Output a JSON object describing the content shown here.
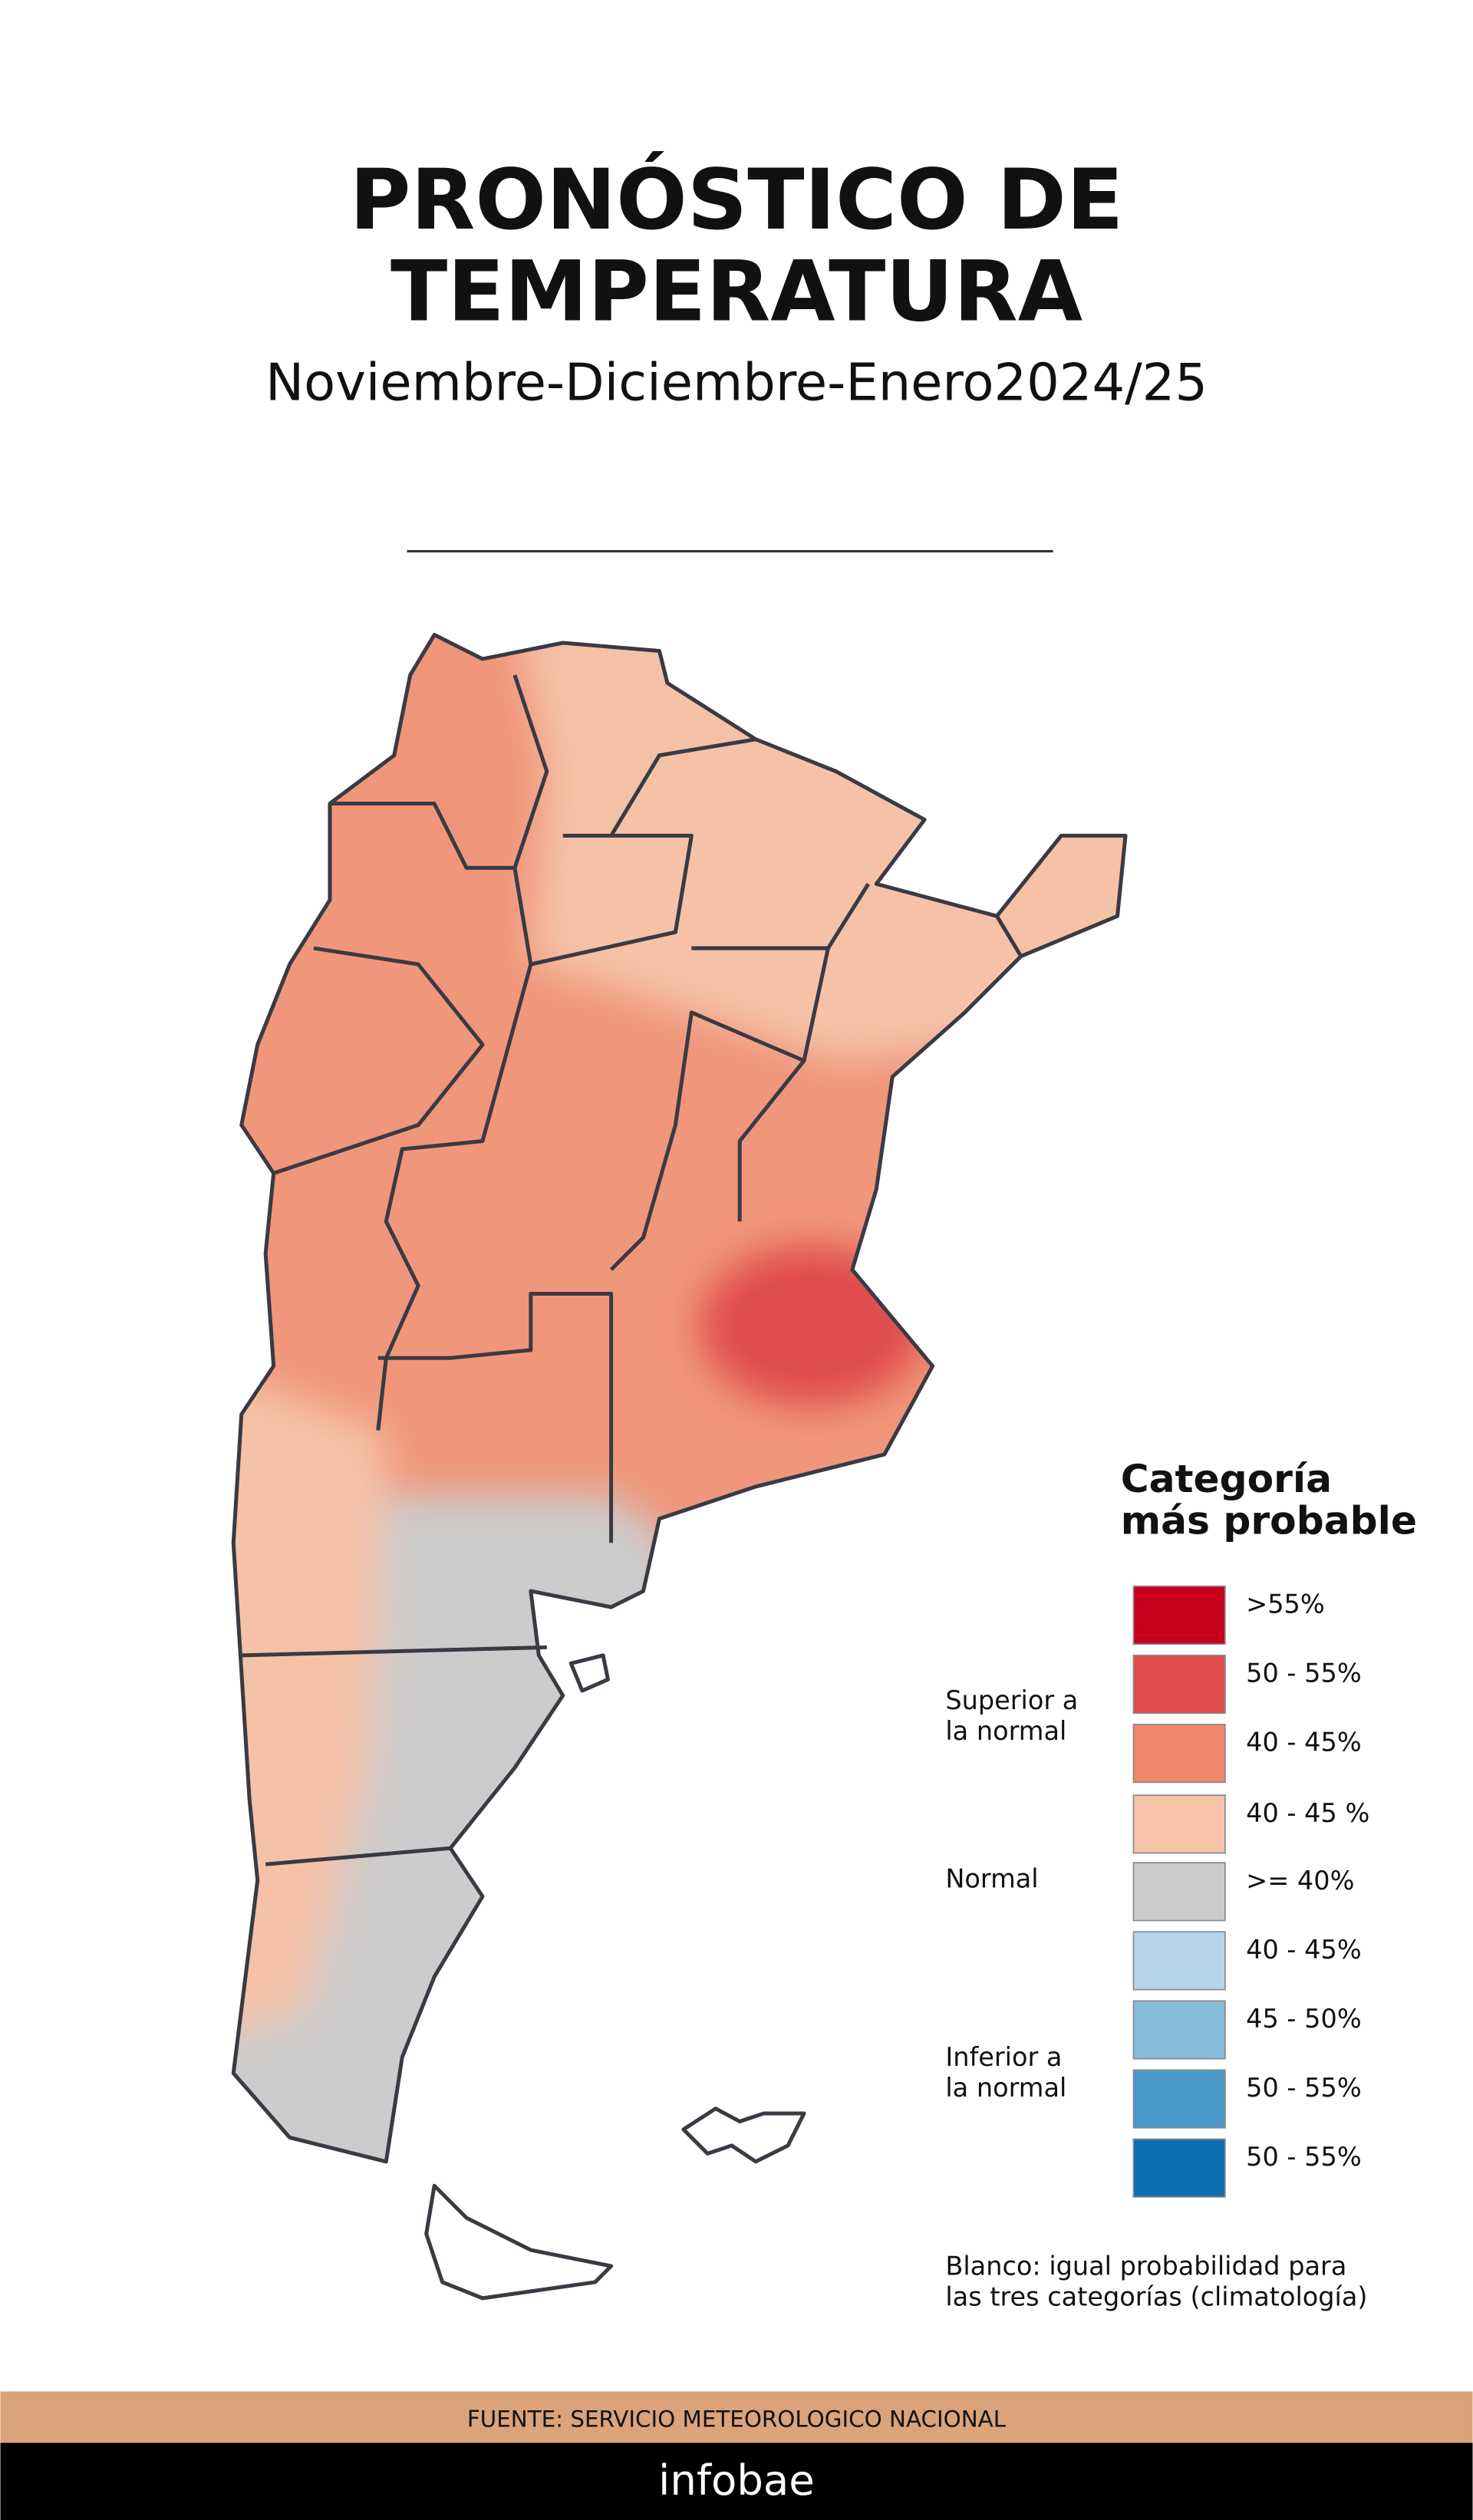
{
  "header": {
    "title": [
      "PRONÓSTICO DE",
      "TEMPERATURA"
    ],
    "subtitle": "Noviembre-Diciembre-Enero2024/25"
  },
  "legend": {
    "title": [
      "Categoría",
      "más probable"
    ],
    "items": [
      {
        "label": ">55%",
        "color": "#c8001e"
      },
      {
        "label": "50 - 55%",
        "color": "#e04b4d"
      },
      {
        "label": "40 - 45%",
        "color": "#f0876a"
      },
      {
        "label": "40 - 45 %",
        "color": "#f6c2aa"
      },
      {
        "label": ">= 40%",
        "color": "#cccccc"
      },
      {
        "label": "40 - 45%",
        "color": "#b5d6ea"
      },
      {
        "label": "45 - 50%",
        "color": "#86bbd9"
      },
      {
        "label": "50 - 55%",
        "color": "#4a9ac9"
      },
      {
        "label": "50 - 55%",
        "color": "#0b6fb3"
      }
    ],
    "groups": [
      [
        "Superior a",
        "la normal"
      ],
      [
        "Normal"
      ],
      [
        "Inferior a",
        "la normal"
      ]
    ],
    "note": [
      "Blanco: igual probabilidad para",
      "las tres categorías (climatología)"
    ]
  },
  "footer": {
    "source": "FUENTE: SERVICIO METEOROLOGICO NACIONAL",
    "brand": "infobae"
  }
}
